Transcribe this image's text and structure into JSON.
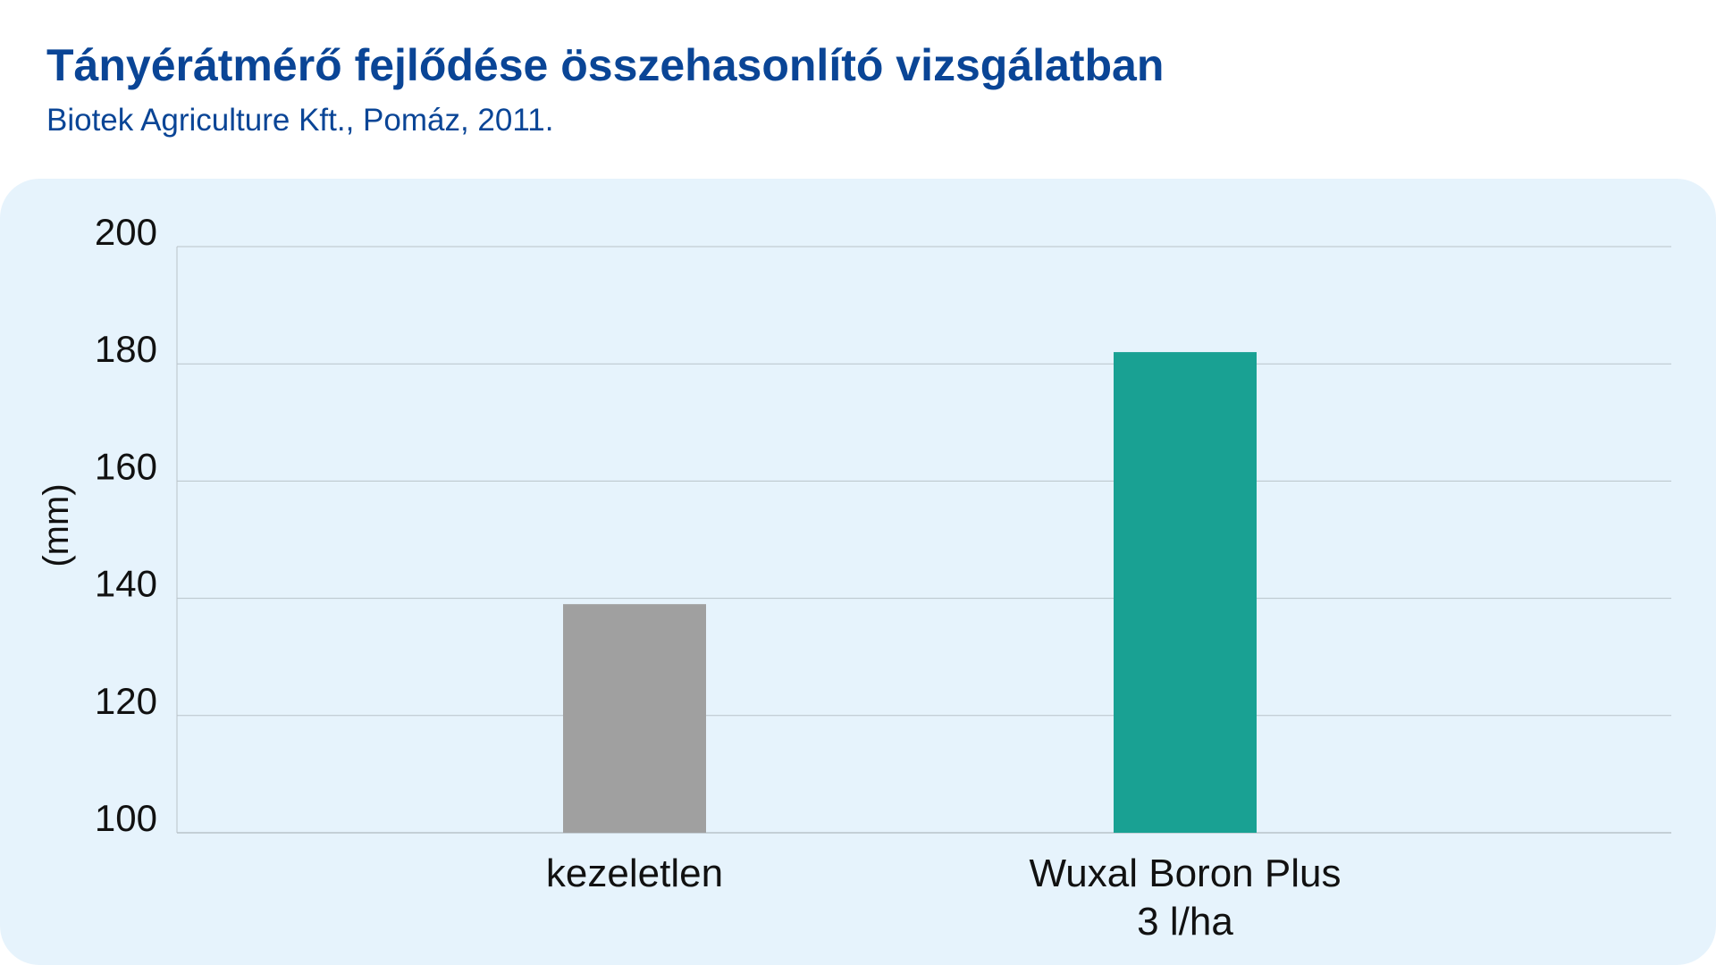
{
  "title": "Tányérátmérő fejlődése összehasonlító vizsgálatban",
  "subtitle": "Biotek Agriculture Kft., Pomáz, 2011.",
  "colors": {
    "title": "#0a4596",
    "panel_background": "#e6f3fc",
    "gridline": "#b9c3c9"
  },
  "chart_data": {
    "type": "bar",
    "categories": [
      [
        "kezeletlen"
      ],
      [
        "Wuxal Boron Plus",
        "3 l/ha"
      ]
    ],
    "values": [
      139,
      182
    ],
    "bar_colors": [
      "#a0a0a0",
      "#19a193"
    ],
    "ylabel": "(mm)",
    "ylim": [
      100,
      200
    ],
    "yticks": [
      100,
      120,
      140,
      160,
      180,
      200
    ],
    "grid": true,
    "legend": "none"
  }
}
